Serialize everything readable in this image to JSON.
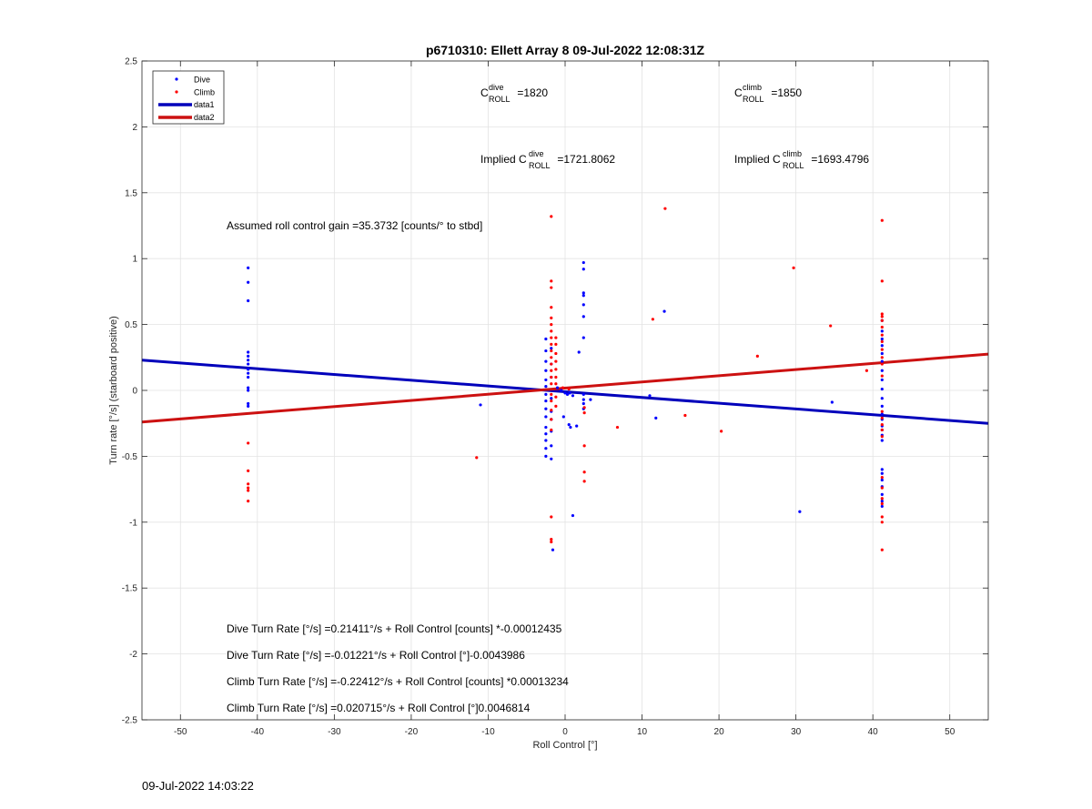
{
  "chart_data": {
    "type": "scatter",
    "title": "p6710310: Ellett Array 8 09-Jul-2022 12:08:31Z",
    "xlabel": "Roll Control [°]",
    "ylabel": "Turn rate [°/s] (starboard positive)",
    "xlim": [
      -55,
      55
    ],
    "ylim": [
      -2.5,
      2.5
    ],
    "xticks": [
      -50,
      -40,
      -30,
      -20,
      -10,
      0,
      10,
      20,
      30,
      40,
      50
    ],
    "yticks": [
      -2.5,
      -2,
      -1.5,
      -1,
      -0.5,
      0,
      0.5,
      1,
      1.5,
      2,
      2.5
    ],
    "grid": true,
    "legend_position": "top-left",
    "legend": [
      {
        "label": "Dive",
        "style": "marker",
        "color": "#0000ff"
      },
      {
        "label": "Climb",
        "style": "marker",
        "color": "#ff0000"
      },
      {
        "label": "data1",
        "style": "line",
        "color": "#0000bb"
      },
      {
        "label": "data2",
        "style": "line",
        "color": "#cc1111"
      }
    ],
    "series": [
      {
        "name": "Dive",
        "color": "#0000ff",
        "points": [
          [
            -41.2,
            0.93
          ],
          [
            -41.2,
            0.82
          ],
          [
            -41.2,
            0.68
          ],
          [
            -41.2,
            0.29
          ],
          [
            -41.2,
            0.26
          ],
          [
            -41.2,
            0.23
          ],
          [
            -41.2,
            0.2
          ],
          [
            -41.2,
            0.16
          ],
          [
            -41.2,
            0.13
          ],
          [
            -41.2,
            0.1
          ],
          [
            -41.2,
            0.02
          ],
          [
            -41.2,
            0.0
          ],
          [
            -41.2,
            -0.1
          ],
          [
            -41.2,
            -0.12
          ],
          [
            -11,
            -0.11
          ],
          [
            -2.5,
            0.39
          ],
          [
            -2.5,
            0.3
          ],
          [
            -2.5,
            0.22
          ],
          [
            -2.5,
            0.15
          ],
          [
            -2.5,
            0.08
          ],
          [
            -2.5,
            0.03
          ],
          [
            -2.5,
            -0.03
          ],
          [
            -2.5,
            -0.08
          ],
          [
            -2.5,
            -0.14
          ],
          [
            -2.5,
            -0.2
          ],
          [
            -2.5,
            -0.28
          ],
          [
            -2.5,
            -0.33
          ],
          [
            -2.5,
            -0.38
          ],
          [
            -2.5,
            -0.44
          ],
          [
            -2.5,
            -0.5
          ],
          [
            -1.8,
            0.32
          ],
          [
            -1.8,
            0.2
          ],
          [
            -1.8,
            0.1
          ],
          [
            -1.8,
            -0.06
          ],
          [
            -1.8,
            -0.16
          ],
          [
            -1.8,
            -0.22
          ],
          [
            -1.8,
            -0.31
          ],
          [
            -1.8,
            -0.42
          ],
          [
            -1.8,
            -0.52
          ],
          [
            -1.6,
            -1.21
          ],
          [
            -1.0,
            0.02
          ],
          [
            -0.5,
            0.0
          ],
          [
            0,
            -0.02
          ],
          [
            0.3,
            -0.03
          ],
          [
            0.6,
            -0.02
          ],
          [
            1.0,
            -0.04
          ],
          [
            -0.2,
            -0.2
          ],
          [
            0.5,
            -0.26
          ],
          [
            0.7,
            -0.28
          ],
          [
            1.5,
            -0.27
          ],
          [
            1.0,
            -0.95
          ],
          [
            1.8,
            0.29
          ],
          [
            2.4,
            0.97
          ],
          [
            2.4,
            0.92
          ],
          [
            2.4,
            0.74
          ],
          [
            2.4,
            0.72
          ],
          [
            2.4,
            0.65
          ],
          [
            2.4,
            0.56
          ],
          [
            2.4,
            0.4
          ],
          [
            2.4,
            -0.03
          ],
          [
            2.4,
            -0.07
          ],
          [
            2.4,
            -0.1
          ],
          [
            2.4,
            -0.14
          ],
          [
            3.3,
            -0.07
          ],
          [
            11,
            -0.04
          ],
          [
            11.8,
            -0.21
          ],
          [
            12.9,
            0.6
          ],
          [
            34.7,
            -0.09
          ],
          [
            30.5,
            -0.92
          ],
          [
            41.2,
            0.53
          ],
          [
            41.2,
            0.45
          ],
          [
            41.2,
            0.39
          ],
          [
            41.2,
            0.34
          ],
          [
            41.2,
            0.28
          ],
          [
            41.2,
            0.22
          ],
          [
            41.2,
            0.15
          ],
          [
            41.2,
            0.08
          ],
          [
            41.2,
            0.01
          ],
          [
            41.2,
            -0.06
          ],
          [
            41.2,
            -0.12
          ],
          [
            41.2,
            -0.18
          ],
          [
            41.2,
            -0.22
          ],
          [
            41.2,
            -0.27
          ],
          [
            41.2,
            -0.3
          ],
          [
            41.2,
            -0.34
          ],
          [
            41.2,
            -0.38
          ],
          [
            41.2,
            -0.6
          ],
          [
            41.2,
            -0.63
          ],
          [
            41.2,
            -0.68
          ],
          [
            41.2,
            -0.73
          ],
          [
            41.2,
            -0.79
          ],
          [
            41.2,
            -0.84
          ],
          [
            41.2,
            -0.88
          ]
        ]
      },
      {
        "name": "Climb",
        "color": "#ff0000",
        "points": [
          [
            -41.2,
            -0.4
          ],
          [
            -41.2,
            -0.61
          ],
          [
            -41.2,
            -0.71
          ],
          [
            -41.2,
            -0.74
          ],
          [
            -41.2,
            -0.76
          ],
          [
            -41.2,
            -0.84
          ],
          [
            -11.5,
            -0.51
          ],
          [
            -1.8,
            1.32
          ],
          [
            -1.8,
            0.83
          ],
          [
            -1.8,
            0.78
          ],
          [
            -1.8,
            0.63
          ],
          [
            -1.8,
            0.55
          ],
          [
            -1.8,
            0.5
          ],
          [
            -1.8,
            0.45
          ],
          [
            -1.8,
            0.4
          ],
          [
            -1.8,
            0.35
          ],
          [
            -1.8,
            0.3
          ],
          [
            -1.8,
            0.25
          ],
          [
            -1.8,
            0.2
          ],
          [
            -1.8,
            0.15
          ],
          [
            -1.8,
            0.1
          ],
          [
            -1.8,
            0.05
          ],
          [
            -1.8,
            -0.03
          ],
          [
            -1.8,
            -0.08
          ],
          [
            -1.8,
            -0.15
          ],
          [
            -1.8,
            -0.22
          ],
          [
            -1.8,
            -0.3
          ],
          [
            -1.8,
            -0.96
          ],
          [
            -1.8,
            -1.13
          ],
          [
            -1.8,
            -1.15
          ],
          [
            -1.2,
            0.4
          ],
          [
            -1.2,
            0.35
          ],
          [
            -1.2,
            0.28
          ],
          [
            -1.2,
            0.22
          ],
          [
            -1.2,
            0.16
          ],
          [
            -1.2,
            0.1
          ],
          [
            -1.2,
            0.05
          ],
          [
            -1.2,
            -0.05
          ],
          [
            -1.2,
            -0.12
          ],
          [
            -0.3,
            0.02
          ],
          [
            0.5,
            0.01
          ],
          [
            2.5,
            -0.13
          ],
          [
            2.5,
            -0.17
          ],
          [
            2.5,
            -0.42
          ],
          [
            2.5,
            -0.62
          ],
          [
            2.5,
            -0.69
          ],
          [
            6.8,
            -0.28
          ],
          [
            11.4,
            0.54
          ],
          [
            13.0,
            1.38
          ],
          [
            15.6,
            -0.19
          ],
          [
            20.3,
            -0.31
          ],
          [
            25,
            0.26
          ],
          [
            29.7,
            0.93
          ],
          [
            34.5,
            0.49
          ],
          [
            39.2,
            0.15
          ],
          [
            41.2,
            1.29
          ],
          [
            41.2,
            0.83
          ],
          [
            41.2,
            0.58
          ],
          [
            41.2,
            0.56
          ],
          [
            41.2,
            0.53
          ],
          [
            41.2,
            0.48
          ],
          [
            41.2,
            0.42
          ],
          [
            41.2,
            0.37
          ],
          [
            41.2,
            0.31
          ],
          [
            41.2,
            0.25
          ],
          [
            41.2,
            0.2
          ],
          [
            41.2,
            0.11
          ],
          [
            41.2,
            -0.16
          ],
          [
            41.2,
            -0.21
          ],
          [
            41.2,
            -0.26
          ],
          [
            41.2,
            -0.3
          ],
          [
            41.2,
            -0.35
          ],
          [
            41.2,
            -0.66
          ],
          [
            41.2,
            -0.74
          ],
          [
            41.2,
            -0.82
          ],
          [
            41.2,
            -0.86
          ],
          [
            41.2,
            -0.96
          ],
          [
            41.2,
            -1.0
          ],
          [
            41.2,
            -1.21
          ]
        ]
      }
    ],
    "lines": [
      {
        "name": "data1",
        "color": "#0000bb",
        "x": [
          -55,
          55
        ],
        "y": [
          0.23,
          -0.25
        ]
      },
      {
        "name": "data2",
        "color": "#cc1111",
        "x": [
          -55,
          55
        ],
        "y": [
          -0.24,
          0.275
        ]
      }
    ],
    "annotations": {
      "c_dive_base": "C",
      "c_dive_sup": "dive",
      "c_dive_sub": "ROLL",
      "c_dive_value": " =1820",
      "c_climb_base": "C",
      "c_climb_sup": "climb",
      "c_climb_sub": "ROLL",
      "c_climb_value": " =1850",
      "implied_dive_prefix": "Implied C",
      "implied_dive_sup": "dive",
      "implied_dive_sub": "ROLL",
      "implied_dive_value": " =1721.8062",
      "implied_climb_prefix": "Implied C",
      "implied_climb_sup": "climb",
      "implied_climb_sub": "ROLL",
      "implied_climb_value": " =1693.4796",
      "gain": "Assumed roll control gain =35.3732 [counts/° to stbd]",
      "eq1": "Dive Turn Rate [°/s] =0.21411°/s + Roll Control [counts] *-0.00012435",
      "eq2": "Dive Turn Rate [°/s] =-0.01221°/s + Roll Control [°]-0.0043986",
      "eq3": "Climb Turn Rate [°/s] =-0.22412°/s + Roll Control [counts] *0.00013234",
      "eq4": "Climb Turn Rate [°/s] =0.020715°/s + Roll Control [°]0.0046814"
    }
  },
  "footer_timestamp": "09-Jul-2022 14:03:22"
}
